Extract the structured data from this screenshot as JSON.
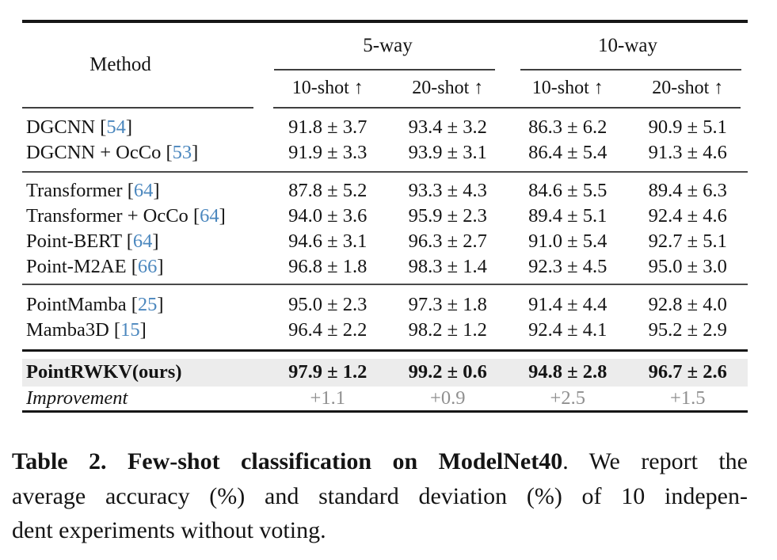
{
  "table": {
    "header": {
      "method": "Method",
      "group_5way": "5-way",
      "group_10way": "10-way",
      "sub": [
        "10-shot ↑",
        "20-shot ↑",
        "10-shot ↑",
        "20-shot ↑"
      ]
    },
    "cite_open": " [",
    "cite_close": "]",
    "sections": [
      {
        "rows": [
          {
            "name": "DGCNN",
            "cite": "54",
            "cells": [
              "91.8 ± 3.7",
              "93.4 ± 3.2",
              "86.3 ± 6.2",
              "90.9 ± 5.1"
            ]
          },
          {
            "name": "DGCNN + OcCo",
            "cite": "53",
            "cells": [
              "91.9 ± 3.3",
              "93.9 ± 3.1",
              "86.4 ± 5.4",
              "91.3 ± 4.6"
            ]
          }
        ]
      },
      {
        "rows": [
          {
            "name": "Transformer",
            "cite": "64",
            "cells": [
              "87.8 ± 5.2",
              "93.3 ± 4.3",
              "84.6 ± 5.5",
              "89.4 ± 6.3"
            ]
          },
          {
            "name": "Transformer + OcCo",
            "cite": "64",
            "cells": [
              "94.0 ± 3.6",
              "95.9 ± 2.3",
              "89.4 ± 5.1",
              "92.4 ± 4.6"
            ]
          },
          {
            "name": "Point-BERT",
            "cite": "64",
            "cells": [
              "94.6 ± 3.1",
              "96.3 ± 2.7",
              "91.0 ± 5.4",
              "92.7 ± 5.1"
            ]
          },
          {
            "name": "Point-M2AE",
            "cite": "66",
            "cells": [
              "96.8 ± 1.8",
              "98.3 ± 1.4",
              "92.3 ± 4.5",
              "95.0 ± 3.0"
            ]
          }
        ]
      },
      {
        "rows": [
          {
            "name": "PointMamba",
            "cite": "25",
            "cells": [
              "95.0 ± 2.3",
              "97.3 ± 1.8",
              "91.4 ± 4.4",
              "92.8 ± 4.0"
            ]
          },
          {
            "name": "Mamba3D",
            "cite": "15",
            "cells": [
              "96.4 ± 2.2",
              "98.2 ± 1.2",
              "92.4 ± 4.1",
              "95.2 ± 2.9"
            ]
          }
        ]
      }
    ],
    "ours": {
      "name": "PointRWKV(ours)",
      "cells": [
        "97.9 ± 1.2",
        "99.2 ± 0.6",
        "94.8 ± 2.8",
        "96.7 ± 2.6"
      ]
    },
    "improvement": {
      "name": "Improvement",
      "cells": [
        "+1.1",
        "+0.9",
        "+2.5",
        "+1.5"
      ]
    }
  },
  "caption": {
    "line1_bold": "Table 2. Few-shot classification on ModelNet40",
    "line1_rest": ". We report the",
    "line2": "average accuracy (%) and standard deviation (%) of 10 indepen-",
    "line3": "dent experiments without voting."
  },
  "colors": {
    "citation_blue": "#4b87be",
    "improvement_gray": "#909090",
    "highlight_row_bg": "#ececec",
    "rule_dark": "#161616"
  }
}
